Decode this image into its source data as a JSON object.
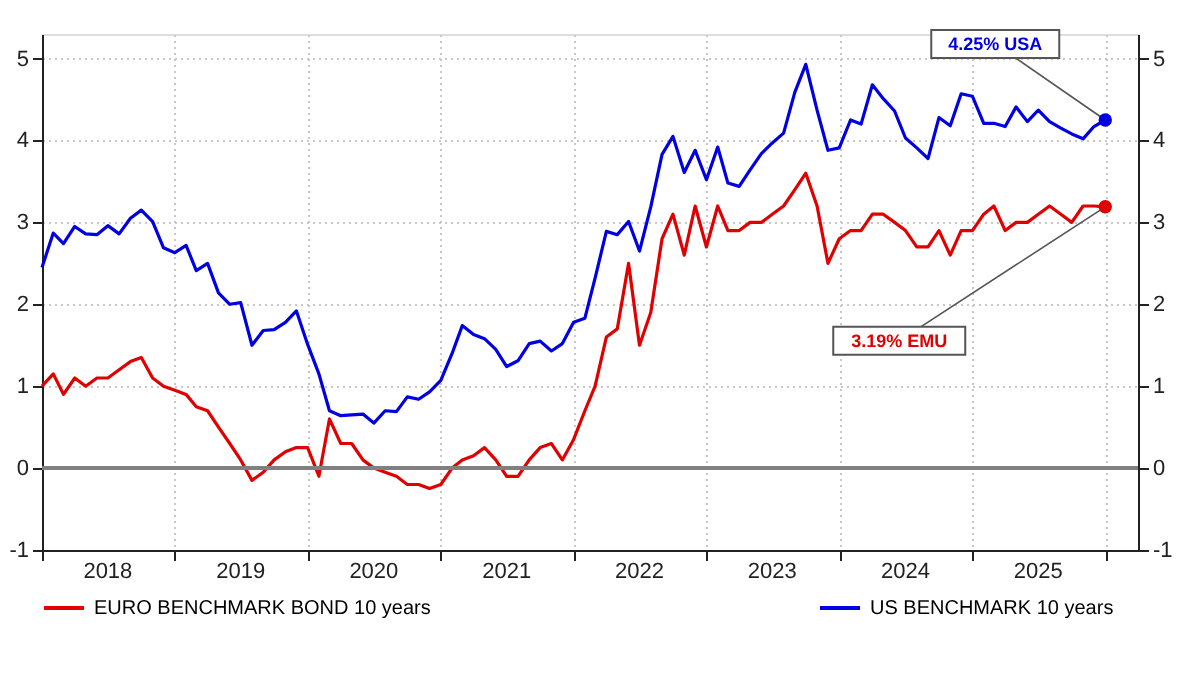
{
  "chart_data": {
    "type": "line",
    "x": [
      "2018-01",
      "2018-02",
      "2018-03",
      "2018-04",
      "2018-05",
      "2018-06",
      "2018-07",
      "2018-08",
      "2018-09",
      "2018-10",
      "2018-11",
      "2018-12",
      "2019-01",
      "2019-02",
      "2019-03",
      "2019-04",
      "2019-05",
      "2019-06",
      "2019-07",
      "2019-08",
      "2019-09",
      "2019-10",
      "2019-11",
      "2019-12",
      "2020-01",
      "2020-02",
      "2020-03",
      "2020-04",
      "2020-05",
      "2020-06",
      "2020-07",
      "2020-08",
      "2020-09",
      "2020-10",
      "2020-11",
      "2020-12",
      "2021-01",
      "2021-02",
      "2021-03",
      "2021-04",
      "2021-05",
      "2021-06",
      "2021-07",
      "2021-08",
      "2021-09",
      "2021-10",
      "2021-11",
      "2021-12",
      "2022-01",
      "2022-02",
      "2022-03",
      "2022-04",
      "2022-05",
      "2022-06",
      "2022-07",
      "2022-08",
      "2022-09",
      "2022-10",
      "2022-11",
      "2022-12",
      "2023-01",
      "2023-02",
      "2023-03",
      "2023-04",
      "2023-05",
      "2023-06",
      "2023-07",
      "2023-08",
      "2023-09",
      "2023-10",
      "2023-11",
      "2023-12",
      "2024-01",
      "2024-02",
      "2024-03",
      "2024-04",
      "2024-05",
      "2024-06",
      "2024-07",
      "2024-08",
      "2024-09",
      "2024-10",
      "2024-11",
      "2024-12",
      "2025-01",
      "2025-02",
      "2025-03",
      "2025-04",
      "2025-05",
      "2025-06",
      "2025-07",
      "2025-08",
      "2025-09",
      "2025-10",
      "2025-11",
      "2025-12",
      "2026-01"
    ],
    "series": [
      {
        "name": "EURO BENCHMARK BOND 10 years",
        "color": "#e00000",
        "values": [
          1.0,
          1.15,
          0.9,
          1.1,
          1.0,
          1.1,
          1.1,
          1.2,
          1.3,
          1.35,
          1.1,
          1.0,
          0.95,
          0.9,
          0.75,
          0.7,
          0.5,
          0.3,
          0.1,
          -0.15,
          -0.05,
          0.1,
          0.2,
          0.25,
          0.25,
          -0.1,
          0.6,
          0.3,
          0.3,
          0.1,
          0.0,
          -0.05,
          -0.1,
          -0.2,
          -0.2,
          -0.25,
          -0.2,
          0.0,
          0.1,
          0.15,
          0.25,
          0.1,
          -0.1,
          -0.1,
          0.1,
          0.25,
          0.3,
          0.1,
          0.35,
          0.7,
          1.0,
          1.6,
          1.7,
          2.5,
          1.5,
          1.9,
          2.8,
          3.1,
          2.6,
          3.2,
          2.7,
          3.2,
          2.9,
          2.9,
          3.0,
          3.0,
          3.1,
          3.2,
          3.4,
          3.6,
          3.2,
          2.5,
          2.8,
          2.9,
          2.9,
          3.1,
          3.1,
          3.0,
          2.9,
          2.7,
          2.7,
          2.9,
          2.6,
          2.9,
          2.9,
          3.1,
          3.2,
          2.9,
          3.0,
          3.0,
          3.1,
          3.2,
          3.1,
          3.0,
          3.2,
          3.2,
          3.19
        ]
      },
      {
        "name": "US BENCHMARK 10 years",
        "color": "#0000e0",
        "values": [
          2.45,
          2.87,
          2.74,
          2.95,
          2.86,
          2.85,
          2.96,
          2.86,
          3.05,
          3.15,
          3.01,
          2.69,
          2.63,
          2.72,
          2.41,
          2.5,
          2.14,
          2.0,
          2.02,
          1.5,
          1.68,
          1.69,
          1.78,
          1.92,
          1.51,
          1.15,
          0.7,
          0.64,
          0.65,
          0.66,
          0.55,
          0.7,
          0.69,
          0.87,
          0.84,
          0.93,
          1.07,
          1.4,
          1.74,
          1.63,
          1.58,
          1.45,
          1.24,
          1.31,
          1.52,
          1.55,
          1.43,
          1.52,
          1.78,
          1.83,
          2.32,
          2.89,
          2.85,
          3.01,
          2.65,
          3.19,
          3.83,
          4.05,
          3.61,
          3.88,
          3.52,
          3.92,
          3.48,
          3.44,
          3.64,
          3.84,
          3.97,
          4.09,
          4.59,
          4.93,
          4.37,
          3.88,
          3.91,
          4.25,
          4.2,
          4.68,
          4.51,
          4.36,
          4.03,
          3.91,
          3.78,
          4.28,
          4.18,
          4.57,
          4.54,
          4.21,
          4.21,
          4.17,
          4.41,
          4.23,
          4.37,
          4.23,
          4.15,
          4.08,
          4.02,
          4.17,
          4.25
        ]
      }
    ],
    "xlim": [
      "2018-01",
      "2026-04"
    ],
    "xticks": [
      {
        "value": "2018-01",
        "label": null
      },
      {
        "value": "2018-07",
        "label": "2018"
      },
      {
        "value": "2019-01",
        "label": null
      },
      {
        "value": "2019-07",
        "label": "2019"
      },
      {
        "value": "2020-01",
        "label": null
      },
      {
        "value": "2020-07",
        "label": "2020"
      },
      {
        "value": "2021-01",
        "label": null
      },
      {
        "value": "2021-07",
        "label": "2021"
      },
      {
        "value": "2022-01",
        "label": null
      },
      {
        "value": "2022-07",
        "label": "2022"
      },
      {
        "value": "2023-01",
        "label": null
      },
      {
        "value": "2023-07",
        "label": "2023"
      },
      {
        "value": "2024-01",
        "label": null
      },
      {
        "value": "2024-07",
        "label": "2024"
      },
      {
        "value": "2025-01",
        "label": null
      },
      {
        "value": "2025-07",
        "label": "2025"
      },
      {
        "value": "2026-01",
        "label": null
      }
    ],
    "ylim": [
      -1,
      5.3
    ],
    "yticks": [
      -1,
      0,
      1,
      2,
      3,
      4,
      5
    ],
    "y2lim": [
      -1,
      5.3
    ],
    "y2ticks": [
      -1,
      0,
      1,
      2,
      3,
      4,
      5
    ],
    "ref_lines": [
      {
        "axis": "y",
        "value": 0,
        "color": "#808080"
      }
    ],
    "annotations": [
      {
        "text": "4.25% USA",
        "x": "2026-01",
        "y": 4.25
      },
      {
        "text": "3.19%  EMU",
        "x": "2026-01",
        "y": 3.19
      }
    ],
    "grid": true,
    "legend": "bottom",
    "line_style": "solid"
  }
}
